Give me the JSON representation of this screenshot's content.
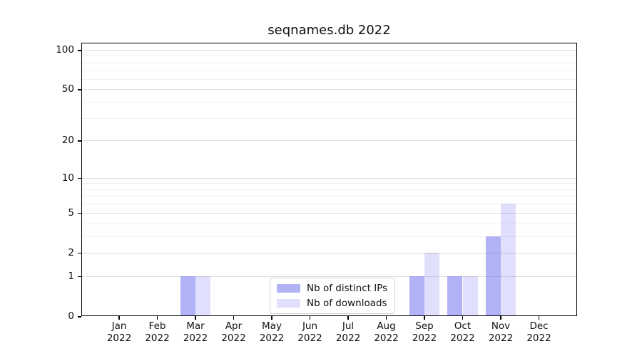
{
  "title": "seqnames.db 2022",
  "chart_data": {
    "type": "bar",
    "title": "seqnames.db 2022",
    "categories": [
      "Jan 2022",
      "Feb 2022",
      "Mar 2022",
      "Apr 2022",
      "May 2022",
      "Jun 2022",
      "Jul 2022",
      "Aug 2022",
      "Sep 2022",
      "Oct 2022",
      "Nov 2022",
      "Dec 2022"
    ],
    "series": [
      {
        "name": "Nb of distinct IPs",
        "color": "rgba(85,85,238,0.45)",
        "values": [
          0,
          0,
          1,
          0,
          0,
          0,
          0,
          0,
          1,
          1,
          3,
          0
        ]
      },
      {
        "name": "Nb of downloads",
        "color": "rgba(60,60,235,0.16)",
        "values": [
          0,
          0,
          1,
          0,
          0,
          0,
          0,
          0,
          2,
          1,
          6,
          0
        ]
      }
    ],
    "xlabel": "",
    "ylabel": "",
    "yscale": "log1p",
    "ylim": [
      0,
      113
    ],
    "y_ticks": [
      0,
      1,
      2,
      5,
      10,
      20,
      50,
      100
    ],
    "y_minor_ticks": [
      3,
      4,
      6,
      7,
      8,
      9,
      30,
      40,
      60,
      70,
      80,
      90
    ],
    "grid": "horizontal major+minor",
    "legend_position": "inside lower center"
  },
  "colors": {
    "major_grid": "#dcdcdc",
    "minor_grid": "#f0f0f0",
    "spine": "#000000",
    "text": "#111111",
    "legend_border": "#d0d0d0"
  }
}
